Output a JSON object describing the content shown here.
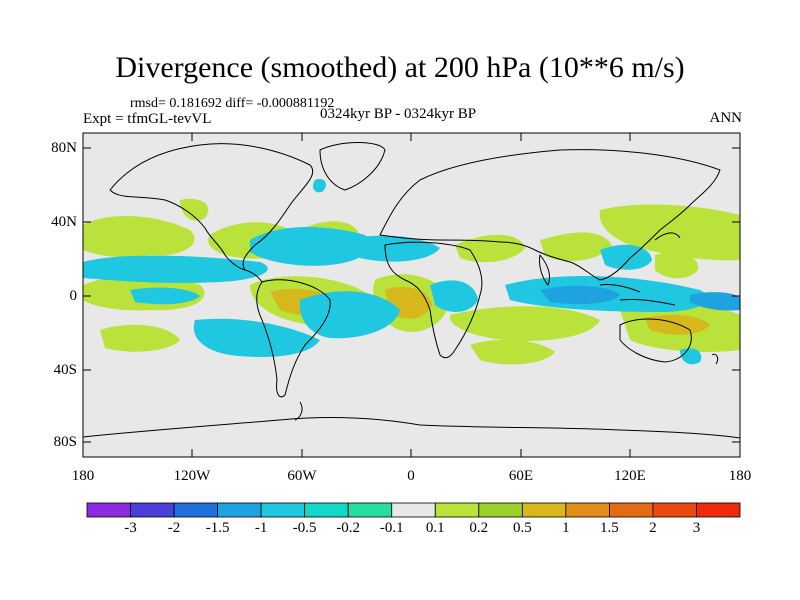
{
  "title": "Divergence (smoothed) at 200 hPa (10**6 m/s)",
  "stats_line": "rmsd= 0.181692 diff= -0.000881192",
  "experiment": "Expt = tfmGL-tevVL",
  "period": "0324kyr BP - 0324kyr BP",
  "season": "ANN",
  "lat_labels": [
    "80N",
    "40N",
    "0",
    "40S",
    "80S"
  ],
  "lon_labels": [
    "180",
    "120W",
    "60W",
    "0",
    "60E",
    "120E",
    "180"
  ],
  "colorbar": {
    "labels": [
      "-3",
      "-2",
      "-1.5",
      "-1",
      "-0.5",
      "-0.2",
      "-0.1",
      "0.1",
      "0.2",
      "0.5",
      "1",
      "1.5",
      "2",
      "3"
    ],
    "colors": [
      "#8a2be2",
      "#4b3fd9",
      "#1f6fdd",
      "#1fa2e0",
      "#1fc8e0",
      "#12d8c8",
      "#24dd9e",
      "#e8e8e8",
      "#b9e33a",
      "#9bcf2a",
      "#d6b81d",
      "#e0901a",
      "#e56a14",
      "#ea4a10",
      "#f02a0c"
    ]
  },
  "map": {
    "background": "#e8e8e8",
    "coast_color": "#000000"
  }
}
